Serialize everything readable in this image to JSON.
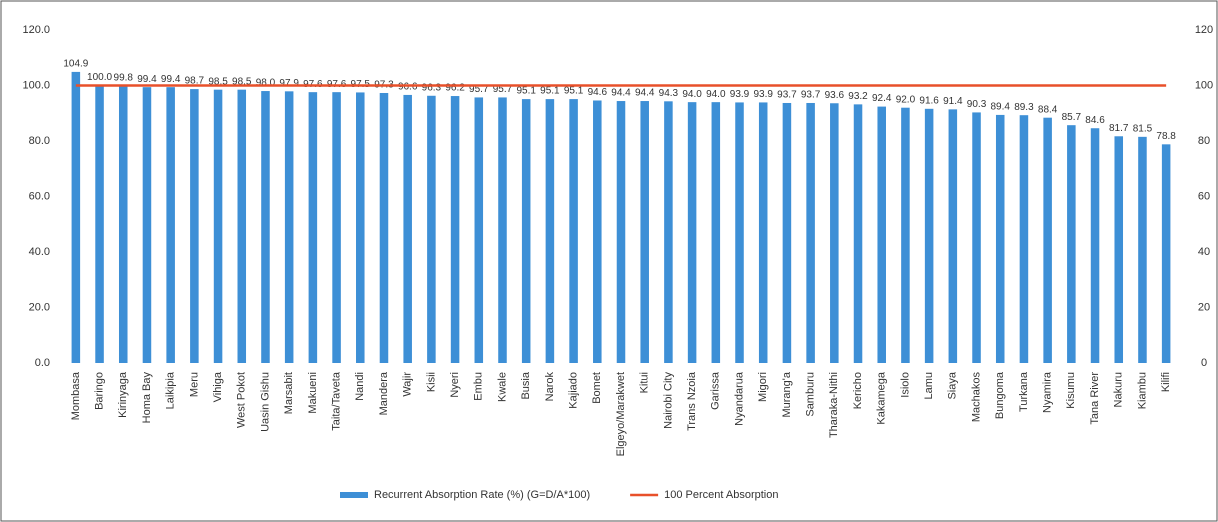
{
  "chart_data": {
    "type": "bar",
    "categories": [
      "Mombasa",
      "Baringo",
      "Kirinyaga",
      "Homa Bay",
      "Laikipia",
      "Meru",
      "Vihiga",
      "West Pokot",
      "Uasin Gishu",
      "Marsabit",
      "Makueni",
      "Taita/Taveta",
      "Nandi",
      "Mandera",
      "Wajir",
      "Kisii",
      "Nyeri",
      "Embu",
      "Kwale",
      "Busia",
      "Narok",
      "Kajiado",
      "Bomet",
      "Elgeyo/Marakwet",
      "Kitui",
      "Nairobi City",
      "Trans Nzoia",
      "Garissa",
      "Nyandarua",
      "Migori",
      "Murang'a",
      "Samburu",
      "Tharaka-Nithi",
      "Kericho",
      "Kakamega",
      "Isiolo",
      "Lamu",
      "Siaya",
      "Machakos",
      "Bungoma",
      "Turkana",
      "Nyamira",
      "Kisumu",
      "Tana River",
      "Nakuru",
      "Kiambu",
      "Kilifi"
    ],
    "series": [
      {
        "name": "Recurrent Absorption Rate (%)  (G=D/A*100)",
        "color": "#3d8fd6",
        "values": [
          104.9,
          100.0,
          99.8,
          99.4,
          99.4,
          98.7,
          98.5,
          98.5,
          98.0,
          97.9,
          97.6,
          97.6,
          97.5,
          97.3,
          96.6,
          96.3,
          96.2,
          95.7,
          95.7,
          95.1,
          95.1,
          95.1,
          94.6,
          94.4,
          94.4,
          94.3,
          94.0,
          94.0,
          93.9,
          93.9,
          93.7,
          93.7,
          93.6,
          93.2,
          92.4,
          92.0,
          91.6,
          91.4,
          90.3,
          89.4,
          89.3,
          88.4,
          85.7,
          84.6,
          81.7,
          81.5,
          78.8
        ],
        "value_labels": [
          "104.9",
          "100.0",
          "99.8",
          "99.4",
          "99.4",
          "98.7",
          "98.5",
          "98.5",
          "98.0",
          "97.9",
          "97.6",
          "97.6",
          "97.5",
          "97.3",
          "96.6",
          "96.3",
          "96.2",
          "95.7",
          "95.7",
          "95.1",
          "95.1",
          "95.1",
          "94.6",
          "94.4",
          "94.4",
          "94.3",
          "94.0",
          "94.0",
          "93.9",
          "93.9",
          "93.7",
          "93.7",
          "93.6",
          "93.2",
          "92.4",
          "92.0",
          "91.6",
          "91.4",
          "90.3",
          "89.4",
          "89.3",
          "88.4",
          "85.7",
          "84.6",
          "81.7",
          "81.5",
          "78.8"
        ]
      },
      {
        "name": "100 Percent Absorption",
        "type": "line",
        "axis": "y2",
        "color": "#e8502a",
        "values": [
          100,
          100,
          100,
          100,
          100,
          100,
          100,
          100,
          100,
          100,
          100,
          100,
          100,
          100,
          100,
          100,
          100,
          100,
          100,
          100,
          100,
          100,
          100,
          100,
          100,
          100,
          100,
          100,
          100,
          100,
          100,
          100,
          100,
          100,
          100,
          100,
          100,
          100,
          100,
          100,
          100,
          100,
          100,
          100,
          100,
          100,
          100
        ]
      }
    ],
    "ylim": [
      0,
      120
    ],
    "yticks": [
      {
        "value": 0,
        "label": "0.0"
      },
      {
        "value": 20,
        "label": "20.0"
      },
      {
        "value": 40,
        "label": "40.0"
      },
      {
        "value": 60,
        "label": "60.0"
      },
      {
        "value": 80,
        "label": "80.0"
      },
      {
        "value": 100,
        "label": "100.0"
      },
      {
        "value": 120,
        "label": "120.0"
      }
    ],
    "y2lim": [
      0,
      120
    ],
    "y2ticks": [
      0,
      20,
      40,
      60,
      80,
      100,
      120
    ],
    "grid": false,
    "legend": "bottom"
  }
}
